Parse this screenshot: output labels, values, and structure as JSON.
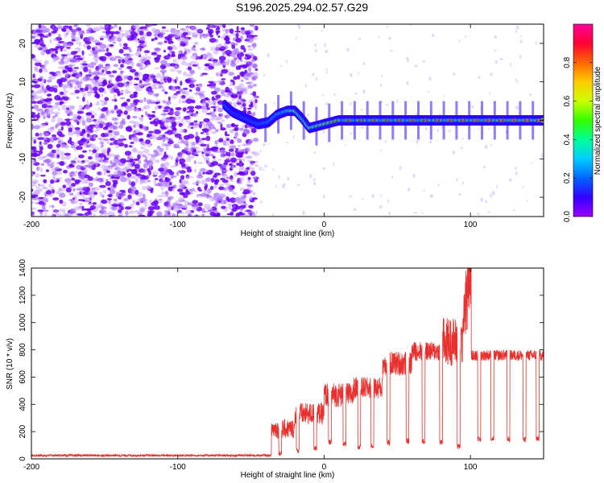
{
  "title": "S196.2025.294.02.57.G29",
  "chart_data": [
    {
      "type": "heatmap",
      "name": "spectrogram",
      "xlabel": "Height of straight line (km)",
      "ylabel": "Frequency (Hz)",
      "xlim": [
        -200,
        150
      ],
      "ylim": [
        -25,
        25
      ],
      "xticks": [
        -200,
        -100,
        0,
        100
      ],
      "yticks": [
        -20,
        -10,
        0,
        10,
        20
      ],
      "colorbar": {
        "label": "Normalized spectral amplitude",
        "range": [
          0,
          1
        ],
        "ticks": [
          0.0,
          0.2,
          0.4,
          0.6,
          0.8
        ],
        "colors": [
          "#9900ff",
          "#3300ff",
          "#0066ff",
          "#00ccff",
          "#00ff99",
          "#33ff00",
          "#ccff00",
          "#ffcc00",
          "#ff6600",
          "#ff0033",
          "#ff0099"
        ]
      },
      "noise_region_x": [
        -200,
        -46
      ],
      "signal_ridge": [
        {
          "x": -68,
          "y": 4,
          "amp": 0.3
        },
        {
          "x": -62,
          "y": 2,
          "amp": 0.25
        },
        {
          "x": -45,
          "y": -1,
          "amp": 0.3
        },
        {
          "x": -38,
          "y": -0.5,
          "amp": 0.35
        },
        {
          "x": -32,
          "y": 1.5,
          "amp": 0.4
        },
        {
          "x": -25,
          "y": 2.5,
          "amp": 0.45
        },
        {
          "x": -20,
          "y": 2.5,
          "amp": 0.5
        },
        {
          "x": -15,
          "y": 0.5,
          "amp": 0.45
        },
        {
          "x": -10,
          "y": -2,
          "amp": 0.5
        },
        {
          "x": -5,
          "y": -1.5,
          "amp": 0.55
        },
        {
          "x": 0,
          "y": -1,
          "amp": 0.6
        },
        {
          "x": 5,
          "y": -0.5,
          "amp": 0.65
        },
        {
          "x": 10,
          "y": 0,
          "amp": 0.7
        },
        {
          "x": 150,
          "y": 0,
          "amp": 0.85
        }
      ]
    },
    {
      "type": "line",
      "name": "snr",
      "xlabel": "Height of straight line (km)",
      "ylabel": "SNR (10 * v/v)",
      "xlim": [
        -200,
        150
      ],
      "ylim": [
        0,
        1400
      ],
      "xticks": [
        -200,
        -100,
        0,
        100
      ],
      "yticks": [
        0,
        200,
        400,
        600,
        800,
        1000,
        1200,
        1400
      ],
      "color": "#e8312e",
      "segments": [
        {
          "x": [
            -200,
            -36
          ],
          "level": 25,
          "noise": 8
        },
        {
          "x": [
            -36,
            -20
          ],
          "level": 220,
          "noise": 70
        },
        {
          "x": [
            -20,
            0
          ],
          "level": 330,
          "noise": 80
        },
        {
          "x": [
            0,
            20
          ],
          "level": 470,
          "noise": 90
        },
        {
          "x": [
            20,
            40
          ],
          "level": 520,
          "noise": 80
        },
        {
          "x": [
            40,
            60
          ],
          "level": 700,
          "noise": 90
        },
        {
          "x": [
            60,
            80
          ],
          "level": 790,
          "noise": 70
        },
        {
          "x": [
            80,
            95
          ],
          "level": 860,
          "noise": 180
        },
        {
          "x": [
            95,
            100
          ],
          "level": 1150,
          "noise": 250
        },
        {
          "x": [
            100,
            150
          ],
          "level": 760,
          "noise": 40
        }
      ],
      "dropouts": [
        {
          "x": -30,
          "width": 2,
          "level": 40
        },
        {
          "x": -18,
          "width": 2,
          "level": 60
        },
        {
          "x": -6,
          "width": 2,
          "level": 80
        },
        {
          "x": 4,
          "width": 2,
          "level": 120
        },
        {
          "x": 14,
          "width": 2,
          "level": 110
        },
        {
          "x": 24,
          "width": 2,
          "level": 90
        },
        {
          "x": 33,
          "width": 2,
          "level": 100
        },
        {
          "x": 44,
          "width": 2,
          "level": 120
        },
        {
          "x": 57,
          "width": 2,
          "level": 130
        },
        {
          "x": 68,
          "width": 2,
          "level": 130
        },
        {
          "x": 80,
          "width": 2,
          "level": 120
        },
        {
          "x": 92,
          "width": 2,
          "level": 90
        },
        {
          "x": 106,
          "width": 2,
          "level": 140
        },
        {
          "x": 115,
          "width": 2,
          "level": 150
        },
        {
          "x": 126,
          "width": 2,
          "level": 140
        },
        {
          "x": 137,
          "width": 2,
          "level": 140
        },
        {
          "x": 146,
          "width": 2,
          "level": 150
        }
      ]
    }
  ]
}
